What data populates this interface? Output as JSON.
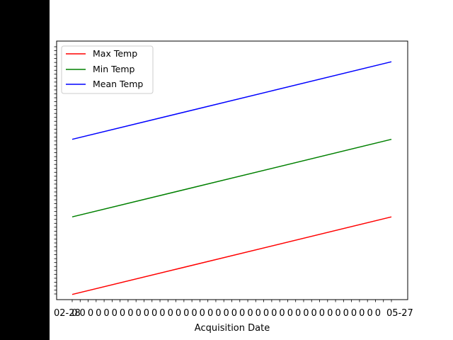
{
  "chart_data": {
    "type": "line",
    "title": "",
    "xlabel": "Acquisition Date",
    "ylabel": "",
    "grid": false,
    "legend_position": "upper-left",
    "x_first_label_fragment": "02-28",
    "x_last_label_fragment": "05-27",
    "x_label_count": 41,
    "y_tick_count": 64,
    "series": [
      {
        "name": "Max Temp",
        "color": "#ff0000",
        "y_start_frac": 0.02,
        "y_end_frac": 0.32
      },
      {
        "name": "Min Temp",
        "color": "#008000",
        "y_start_frac": 0.32,
        "y_end_frac": 0.62
      },
      {
        "name": "Mean Temp",
        "color": "#0000ff",
        "y_start_frac": 0.62,
        "y_end_frac": 0.92
      }
    ]
  },
  "labels": {
    "legend": [
      "Max Temp",
      "Min Temp",
      "Mean Temp"
    ],
    "xlabel": "Acquisition Date",
    "last_tick": "05-27"
  }
}
